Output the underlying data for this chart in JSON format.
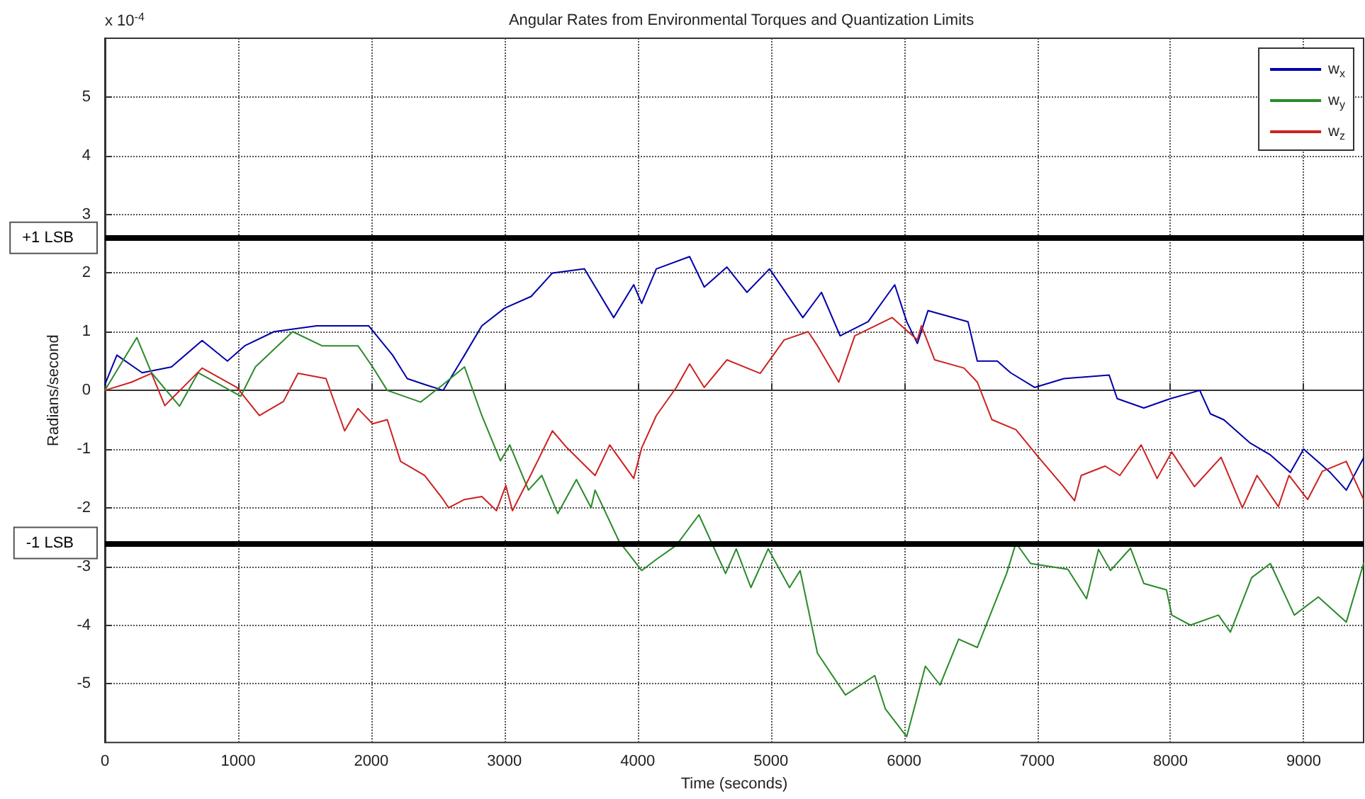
{
  "chart_data": {
    "type": "line",
    "title": "Angular Rates from Environmental Torques and Quantization Limits",
    "xlabel": "Time (seconds)",
    "ylabel": "Radians/second",
    "annotations": [
      "x 10$^{-4}$"
    ],
    "xlim": [
      0,
      9450
    ],
    "xticks": [
      0,
      1000,
      2000,
      3000,
      4000,
      5000,
      6000,
      7000,
      8000,
      9000
    ],
    "ylim": [
      -6,
      6
    ],
    "yticks": [
      -5,
      -4,
      -3,
      -2,
      -1,
      0,
      1,
      2,
      3,
      4,
      5
    ],
    "grid": true,
    "legend": "top right",
    "marker": "none",
    "line_style": "solid",
    "ref_lines": [
      {
        "axis": "y",
        "value": 2.6,
        "label": "+1 LSB",
        "color": "#000000"
      },
      {
        "axis": "y",
        "value": -2.6,
        "label": "-1 LSB",
        "color": "#000000"
      }
    ],
    "series": [
      {
        "name": "w$_{x}$",
        "color": "#0000aa",
        "x": [
          0,
          90,
          280,
          500,
          730,
          920,
          1050,
          1270,
          1590,
          1980,
          2160,
          2270,
          2400,
          2540,
          2700,
          2830,
          3000,
          3200,
          3360,
          3600,
          3820,
          3970,
          4030,
          4140,
          4390,
          4500,
          4670,
          4820,
          4990,
          5240,
          5380,
          5520,
          5730,
          5930,
          6020,
          6100,
          6180,
          6480,
          6550,
          6700,
          6800,
          6980,
          7200,
          7540,
          7600,
          7800,
          8000,
          8220,
          8300,
          8400,
          8600,
          8750,
          8900,
          9000,
          9100,
          9200,
          9320,
          9450
        ],
        "values": [
          0.1,
          0.6,
          0.3,
          0.4,
          0.85,
          0.5,
          0.76,
          1.0,
          1.1,
          1.1,
          0.6,
          0.2,
          0.1,
          0.0,
          0.6,
          1.1,
          1.4,
          1.6,
          2.0,
          2.07,
          1.24,
          1.8,
          1.48,
          2.07,
          2.28,
          1.76,
          2.1,
          1.67,
          2.07,
          1.24,
          1.67,
          0.93,
          1.17,
          1.8,
          1.17,
          0.8,
          1.36,
          1.17,
          0.5,
          0.5,
          0.3,
          0.05,
          0.2,
          0.26,
          -0.14,
          -0.3,
          -0.14,
          0.0,
          -0.4,
          -0.5,
          -0.9,
          -1.1,
          -1.4,
          -1.0,
          -1.2,
          -1.4,
          -1.7,
          -1.15
        ]
      },
      {
        "name": "w$_{y}$",
        "color": "#2a8a2a",
        "x": [
          0,
          240,
          350,
          560,
          700,
          1020,
          1130,
          1410,
          1630,
          1900,
          2010,
          2120,
          2370,
          2540,
          2700,
          2830,
          2970,
          3040,
          3180,
          3280,
          3400,
          3540,
          3650,
          3680,
          3860,
          4030,
          4140,
          4290,
          4460,
          4660,
          4740,
          4850,
          4980,
          5140,
          5220,
          5350,
          5560,
          5780,
          5860,
          6020,
          6160,
          6270,
          6410,
          6550,
          6770,
          6840,
          6950,
          7230,
          7370,
          7460,
          7550,
          7700,
          7800,
          7970,
          8010,
          8150,
          8360,
          8450,
          8610,
          8750,
          8930,
          9110,
          9320,
          9450
        ],
        "values": [
          0.0,
          0.9,
          0.3,
          -0.27,
          0.3,
          -0.1,
          0.4,
          1.0,
          0.76,
          0.76,
          0.4,
          0.0,
          -0.2,
          0.1,
          0.4,
          -0.43,
          -1.2,
          -0.93,
          -1.7,
          -1.45,
          -2.1,
          -1.52,
          -2.0,
          -1.7,
          -2.57,
          -3.07,
          -2.88,
          -2.64,
          -2.12,
          -3.12,
          -2.7,
          -3.36,
          -2.7,
          -3.36,
          -3.07,
          -4.48,
          -5.19,
          -4.86,
          -5.43,
          -5.9,
          -4.7,
          -5.02,
          -4.24,
          -4.38,
          -3.12,
          -2.6,
          -2.95,
          -3.05,
          -3.55,
          -2.71,
          -3.07,
          -2.69,
          -3.29,
          -3.4,
          -3.83,
          -4.0,
          -3.83,
          -4.12,
          -3.19,
          -2.95,
          -3.83,
          -3.52,
          -3.95,
          -2.95
        ]
      },
      {
        "name": "w$_{z}$",
        "color": "#cc2222",
        "x": [
          0,
          200,
          350,
          450,
          730,
          990,
          1160,
          1340,
          1450,
          1660,
          1800,
          1900,
          2010,
          2120,
          2220,
          2400,
          2540,
          2580,
          2700,
          2830,
          2940,
          3010,
          3060,
          3180,
          3360,
          3470,
          3680,
          3790,
          3970,
          4030,
          4140,
          4290,
          4390,
          4500,
          4670,
          4920,
          5100,
          5280,
          5350,
          5510,
          5630,
          5910,
          6100,
          6130,
          6230,
          6450,
          6550,
          6660,
          6840,
          7010,
          7190,
          7280,
          7330,
          7510,
          7620,
          7780,
          7900,
          8010,
          8180,
          8380,
          8540,
          8650,
          8810,
          8890,
          9030,
          9140,
          9320,
          9450
        ],
        "values": [
          0.0,
          0.14,
          0.29,
          -0.26,
          0.38,
          0.05,
          -0.43,
          -0.19,
          0.29,
          0.2,
          -0.69,
          -0.31,
          -0.57,
          -0.5,
          -1.21,
          -1.45,
          -1.86,
          -2.0,
          -1.86,
          -1.81,
          -2.05,
          -1.62,
          -2.05,
          -1.52,
          -0.69,
          -0.98,
          -1.45,
          -0.93,
          -1.5,
          -0.98,
          -0.43,
          0.05,
          0.45,
          0.05,
          0.52,
          0.29,
          0.86,
          1.0,
          0.76,
          0.14,
          0.93,
          1.24,
          0.86,
          1.1,
          0.52,
          0.38,
          0.14,
          -0.5,
          -0.67,
          -1.14,
          -1.62,
          -1.88,
          -1.45,
          -1.29,
          -1.45,
          -0.93,
          -1.5,
          -1.05,
          -1.64,
          -1.14,
          -2.0,
          -1.45,
          -1.98,
          -1.45,
          -1.86,
          -1.38,
          -1.21,
          -1.86
        ]
      }
    ]
  }
}
